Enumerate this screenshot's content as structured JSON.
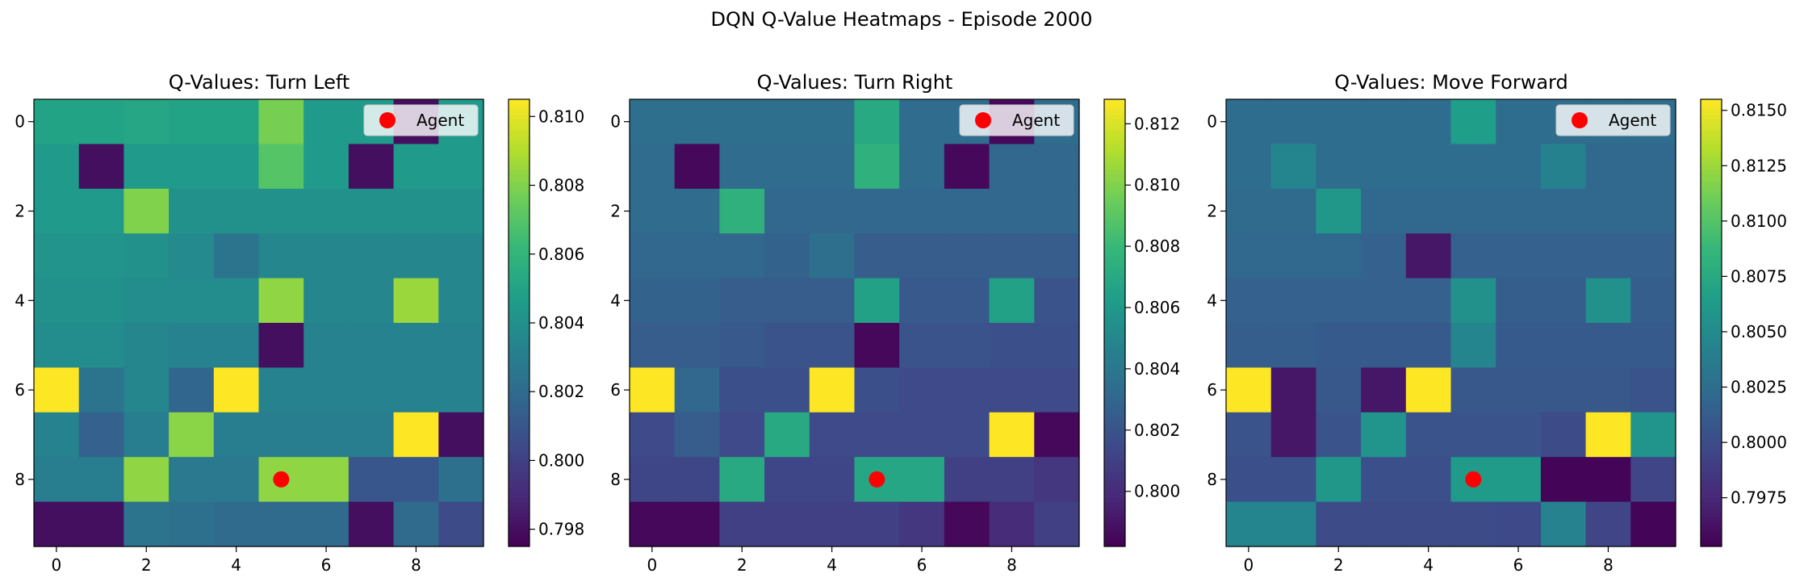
{
  "figure": {
    "title": "DQN Q-Value Heatmaps - Episode 2000"
  },
  "chart_data": [
    {
      "type": "heatmap",
      "title": "Q-Values: Turn Left",
      "xlabel": "",
      "ylabel": "",
      "xticks": [
        0,
        2,
        4,
        6,
        8
      ],
      "yticks": [
        0,
        2,
        4,
        6,
        8
      ],
      "colorbar": {
        "vmin": 0.7975,
        "vmax": 0.8105,
        "ticks": [
          0.798,
          0.8,
          0.802,
          0.804,
          0.806,
          0.808,
          0.81
        ],
        "tick_labels": [
          "0.798",
          "0.800",
          "0.802",
          "0.804",
          "0.806",
          "0.808",
          "0.810"
        ]
      },
      "legend": {
        "label": "Agent",
        "placement": "upper right"
      },
      "agent": {
        "x": 5,
        "y": 8
      },
      "values": [
        [
          0.805,
          0.805,
          0.8052,
          0.805,
          0.805,
          0.8078,
          0.8045,
          0.8045,
          0.798,
          0.8045
        ],
        [
          0.8045,
          0.798,
          0.8045,
          0.8045,
          0.8045,
          0.807,
          0.8045,
          0.798,
          0.8045,
          0.8045
        ],
        [
          0.8045,
          0.8045,
          0.808,
          0.804,
          0.804,
          0.804,
          0.804,
          0.804,
          0.804,
          0.804
        ],
        [
          0.8042,
          0.8042,
          0.804,
          0.8037,
          0.8025,
          0.8035,
          0.8035,
          0.8035,
          0.8035,
          0.8035
        ],
        [
          0.804,
          0.804,
          0.8038,
          0.8038,
          0.8038,
          0.8083,
          0.8035,
          0.8035,
          0.8085,
          0.8035
        ],
        [
          0.8038,
          0.8038,
          0.8035,
          0.8033,
          0.8033,
          0.798,
          0.8033,
          0.8033,
          0.8033,
          0.8033
        ],
        [
          0.8105,
          0.8025,
          0.8035,
          0.8018,
          0.8105,
          0.8033,
          0.8033,
          0.8033,
          0.8033,
          0.8033
        ],
        [
          0.8033,
          0.8015,
          0.803,
          0.8082,
          0.803,
          0.803,
          0.803,
          0.803,
          0.8105,
          0.798
        ],
        [
          0.803,
          0.803,
          0.8083,
          0.8028,
          0.8028,
          0.8083,
          0.8083,
          0.801,
          0.801,
          0.8023
        ],
        [
          0.798,
          0.798,
          0.8025,
          0.8023,
          0.802,
          0.802,
          0.802,
          0.798,
          0.802,
          0.8005
        ]
      ]
    },
    {
      "type": "heatmap",
      "title": "Q-Values: Turn Right",
      "xlabel": "",
      "ylabel": "",
      "xticks": [
        0,
        2,
        4,
        6,
        8
      ],
      "yticks": [
        0,
        2,
        4,
        6,
        8
      ],
      "colorbar": {
        "vmin": 0.7982,
        "vmax": 0.8128,
        "ticks": [
          0.8,
          0.802,
          0.804,
          0.806,
          0.808,
          0.81,
          0.812
        ],
        "tick_labels": [
          "0.800",
          "0.802",
          "0.804",
          "0.806",
          "0.808",
          "0.810",
          "0.812"
        ]
      },
      "legend": {
        "label": "Agent",
        "placement": "upper right"
      },
      "agent": {
        "x": 5,
        "y": 8
      },
      "values": [
        [
          0.8035,
          0.8035,
          0.8035,
          0.8035,
          0.8035,
          0.807,
          0.8033,
          0.8033,
          0.7985,
          0.8033
        ],
        [
          0.8033,
          0.7985,
          0.8033,
          0.8033,
          0.8033,
          0.8075,
          0.8033,
          0.7985,
          0.803,
          0.803
        ],
        [
          0.8033,
          0.8033,
          0.8075,
          0.803,
          0.803,
          0.803,
          0.803,
          0.803,
          0.803,
          0.803
        ],
        [
          0.803,
          0.803,
          0.803,
          0.8028,
          0.8035,
          0.8025,
          0.8025,
          0.8025,
          0.8025,
          0.8025
        ],
        [
          0.8028,
          0.8028,
          0.8025,
          0.8025,
          0.8025,
          0.8065,
          0.8023,
          0.8023,
          0.8065,
          0.802
        ],
        [
          0.8025,
          0.8025,
          0.8023,
          0.802,
          0.802,
          0.7985,
          0.802,
          0.802,
          0.8018,
          0.8018
        ],
        [
          0.8128,
          0.803,
          0.8018,
          0.8018,
          0.8128,
          0.8018,
          0.8015,
          0.8015,
          0.8015,
          0.8015
        ],
        [
          0.8015,
          0.8025,
          0.8015,
          0.807,
          0.8015,
          0.8015,
          0.8015,
          0.8015,
          0.8128,
          0.7985
        ],
        [
          0.8013,
          0.8013,
          0.807,
          0.8013,
          0.8013,
          0.8068,
          0.8068,
          0.801,
          0.801,
          0.8005
        ],
        [
          0.7985,
          0.7985,
          0.801,
          0.801,
          0.801,
          0.801,
          0.8005,
          0.7985,
          0.8,
          0.801
        ]
      ]
    },
    {
      "type": "heatmap",
      "title": "Q-Values: Move Forward",
      "xlabel": "",
      "ylabel": "",
      "xticks": [
        0,
        2,
        4,
        6,
        8
      ],
      "yticks": [
        0,
        2,
        4,
        6,
        8
      ],
      "colorbar": {
        "vmin": 0.7953,
        "vmax": 0.8155,
        "ticks": [
          0.7975,
          0.8,
          0.8025,
          0.805,
          0.8075,
          0.81,
          0.8125,
          0.815
        ],
        "tick_labels": [
          "0.7975",
          "0.8000",
          "0.8025",
          "0.8050",
          "0.8075",
          "0.8100",
          "0.8125",
          "0.8150"
        ]
      },
      "legend": {
        "label": "Agent",
        "placement": "upper right"
      },
      "agent": {
        "x": 5,
        "y": 8
      },
      "values": [
        [
          0.8025,
          0.8025,
          0.8025,
          0.8025,
          0.8025,
          0.8065,
          0.8025,
          0.8025,
          0.8025,
          0.8025
        ],
        [
          0.8025,
          0.8045,
          0.8025,
          0.8025,
          0.8025,
          0.8025,
          0.8025,
          0.8042,
          0.802,
          0.802
        ],
        [
          0.8023,
          0.8023,
          0.806,
          0.802,
          0.802,
          0.802,
          0.802,
          0.802,
          0.802,
          0.802
        ],
        [
          0.802,
          0.802,
          0.802,
          0.8015,
          0.7965,
          0.8015,
          0.8015,
          0.8015,
          0.8015,
          0.8015
        ],
        [
          0.8015,
          0.8015,
          0.8015,
          0.8015,
          0.8015,
          0.8055,
          0.8013,
          0.8013,
          0.8055,
          0.8013
        ],
        [
          0.8013,
          0.8013,
          0.801,
          0.801,
          0.801,
          0.8045,
          0.801,
          0.801,
          0.801,
          0.801
        ],
        [
          0.8155,
          0.7965,
          0.8008,
          0.7965,
          0.8155,
          0.8008,
          0.8008,
          0.8008,
          0.8008,
          0.8005
        ],
        [
          0.8005,
          0.7965,
          0.8005,
          0.8058,
          0.8005,
          0.8005,
          0.8005,
          0.8,
          0.8155,
          0.8058
        ],
        [
          0.8003,
          0.8003,
          0.806,
          0.8003,
          0.8003,
          0.8063,
          0.8063,
          0.7955,
          0.7955,
          0.7995
        ],
        [
          0.8045,
          0.8045,
          0.8,
          0.8,
          0.8,
          0.8,
          0.7998,
          0.8043,
          0.7995,
          0.7955
        ]
      ]
    }
  ]
}
